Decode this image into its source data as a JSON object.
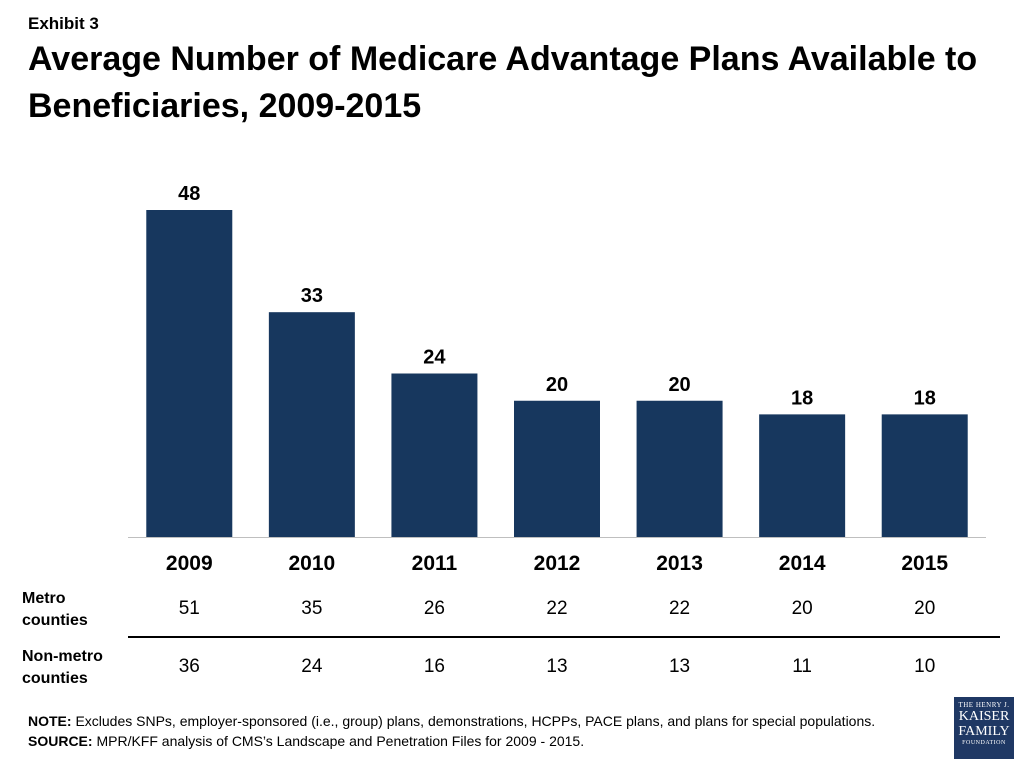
{
  "exhibit_label": "Exhibit 3",
  "title": "Average Number of Medicare Advantage Plans Available to Beneficiaries, 2009-2015",
  "colors": {
    "bar": "#17375e",
    "axis": "#bfbfbf"
  },
  "chart_data": {
    "type": "bar",
    "categories": [
      "2009",
      "2010",
      "2011",
      "2012",
      "2013",
      "2014",
      "2015"
    ],
    "values": [
      48,
      33,
      24,
      20,
      20,
      18,
      18
    ],
    "data_labels": [
      "48",
      "33",
      "24",
      "20",
      "20",
      "18",
      "18"
    ],
    "ylim": [
      0,
      50
    ],
    "grid": false,
    "legend": "none"
  },
  "table": {
    "rows": [
      {
        "label_line1": "Metro",
        "label_line2": "counties",
        "values": [
          "51",
          "35",
          "26",
          "22",
          "22",
          "20",
          "20"
        ]
      },
      {
        "label_line1": "Non-metro",
        "label_line2": "counties",
        "values": [
          "36",
          "24",
          "16",
          "13",
          "13",
          "11",
          "10"
        ]
      }
    ]
  },
  "footnote": {
    "note_label": "NOTE:",
    "note_text": " Excludes SNPs, employer-sponsored (i.e., group) plans, demonstrations, HCPPs, PACE plans, and plans for special populations.",
    "source_label": "SOURCE:",
    "source_text": "  MPR/KFF analysis of CMS’s Landscape and Penetration Files for 2009 - 2015."
  },
  "logo": {
    "line1": "THE HENRY J.",
    "line2": "KAISER",
    "line3": "FAMILY",
    "line4": "FOUNDATION"
  }
}
